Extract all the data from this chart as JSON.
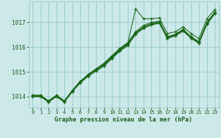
{
  "background_color": "#cce8e8",
  "grid_color": "#99cccc",
  "line_color": "#1a6618",
  "text_color": "#1a5c1a",
  "xlabel": "Graphe pression niveau de la mer (hPa)",
  "xlim": [
    -0.5,
    23.5
  ],
  "ylim": [
    1013.55,
    1017.85
  ],
  "yticks": [
    1014,
    1015,
    1016,
    1017
  ],
  "xticks": [
    0,
    1,
    2,
    3,
    4,
    5,
    6,
    7,
    8,
    9,
    10,
    11,
    12,
    13,
    14,
    15,
    16,
    17,
    18,
    19,
    20,
    21,
    22,
    23
  ],
  "series": [
    [
      1014.0,
      1014.0,
      1013.78,
      1014.0,
      1013.78,
      1014.2,
      1014.55,
      1014.85,
      1015.08,
      1015.32,
      1015.62,
      1015.92,
      1016.15,
      1017.55,
      1017.15,
      1017.15,
      1017.18,
      1016.55,
      1016.62,
      1016.82,
      1016.55,
      1016.35,
      1017.15,
      1017.52
    ],
    [
      1014.05,
      1014.05,
      1013.82,
      1014.05,
      1013.82,
      1014.25,
      1014.6,
      1014.9,
      1015.12,
      1015.35,
      1015.65,
      1015.95,
      1016.18,
      1016.62,
      1016.88,
      1017.0,
      1017.05,
      1016.42,
      1016.52,
      1016.72,
      1016.42,
      1016.22,
      1017.0,
      1017.42
    ],
    [
      1014.05,
      1014.05,
      1013.82,
      1014.05,
      1013.82,
      1014.25,
      1014.62,
      1014.88,
      1015.1,
      1015.3,
      1015.6,
      1015.9,
      1016.12,
      1016.58,
      1016.82,
      1016.95,
      1017.02,
      1016.4,
      1016.5,
      1016.7,
      1016.4,
      1016.2,
      1016.98,
      1017.4
    ],
    [
      1014.02,
      1014.02,
      1013.8,
      1014.02,
      1013.8,
      1014.22,
      1014.58,
      1014.85,
      1015.07,
      1015.27,
      1015.57,
      1015.87,
      1016.1,
      1016.55,
      1016.8,
      1016.92,
      1017.0,
      1016.38,
      1016.48,
      1016.68,
      1016.38,
      1016.18,
      1016.95,
      1017.38
    ],
    [
      1014.0,
      1014.0,
      1013.78,
      1014.0,
      1013.78,
      1014.2,
      1014.55,
      1014.82,
      1015.03,
      1015.23,
      1015.53,
      1015.83,
      1016.06,
      1016.52,
      1016.76,
      1016.9,
      1016.96,
      1016.35,
      1016.45,
      1016.65,
      1016.35,
      1016.15,
      1016.92,
      1017.35
    ]
  ]
}
